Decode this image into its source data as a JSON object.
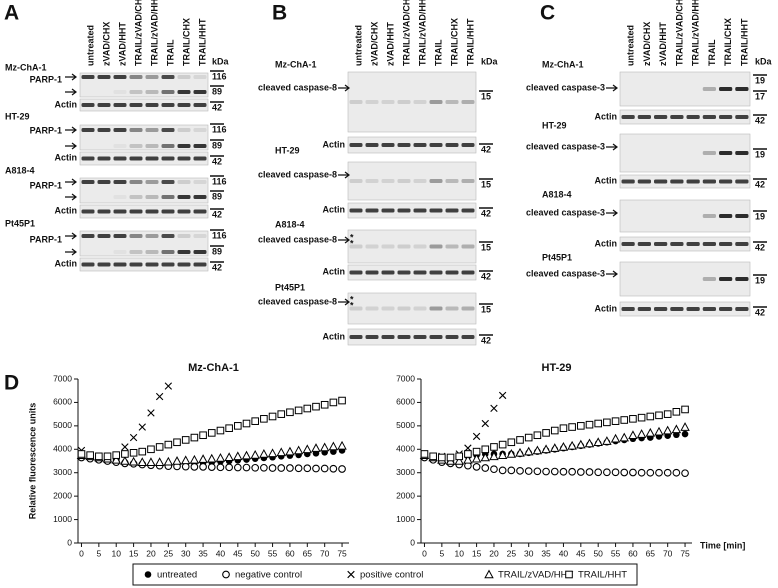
{
  "panels": [
    {
      "letter": "A",
      "kda": "kDa",
      "lanes": [
        "untreated",
        "zVAD/CHX",
        "zVAD/HHT",
        "TRAIL/zVAD/CHX",
        "TRAIL/zVAD/HHT",
        "TRAIL",
        "TRAIL/CHX",
        "TRAIL/HHT"
      ],
      "blocks": [
        {
          "cell_line": "Mz-ChA-1",
          "rows": [
            {
              "label": "PARP-1",
              "markers": [
                116,
                89
              ]
            },
            {
              "label": "Actin",
              "markers": [
                42
              ]
            }
          ]
        },
        {
          "cell_line": "HT-29",
          "rows": [
            {
              "label": "PARP-1",
              "markers": [
                116,
                89
              ]
            },
            {
              "label": "Actin",
              "markers": [
                42
              ]
            }
          ]
        },
        {
          "cell_line": "A818-4",
          "rows": [
            {
              "label": "PARP-1",
              "markers": [
                116,
                89
              ]
            },
            {
              "label": "Actin",
              "markers": [
                42
              ]
            }
          ]
        },
        {
          "cell_line": "Pt45P1",
          "rows": [
            {
              "label": "PARP-1",
              "markers": [
                116,
                89
              ]
            },
            {
              "label": "Actin",
              "markers": [
                42
              ]
            }
          ]
        }
      ]
    },
    {
      "letter": "B",
      "kda": "kDa",
      "lanes": [
        "untreated",
        "zVAD/CHX",
        "zVAD/HHT",
        "TRAIL/zVAD/CHX",
        "TRAIL/zVAD/HHT",
        "TRAIL",
        "TRAIL/CHX",
        "TRAIL/HHT"
      ],
      "blocks": [
        {
          "cell_line": "Mz-ChA-1",
          "rows": [
            {
              "label": "cleaved caspase-8",
              "markers": [
                15
              ]
            },
            {
              "label": "Actin",
              "markers": [
                42
              ]
            }
          ]
        },
        {
          "cell_line": "HT-29",
          "rows": [
            {
              "label": "cleaved caspase-8",
              "markers": [
                15
              ]
            },
            {
              "label": "Actin",
              "markers": [
                42
              ]
            }
          ]
        },
        {
          "cell_line": "A818-4",
          "rows": [
            {
              "label": "cleaved caspase-8",
              "markers": [
                15
              ],
              "asterisks": [
                "*",
                "*"
              ]
            },
            {
              "label": "Actin",
              "markers": [
                42
              ]
            }
          ]
        },
        {
          "cell_line": "Pt45P1",
          "rows": [
            {
              "label": "cleaved caspase-8",
              "markers": [
                15
              ],
              "asterisks": [
                "*",
                "*"
              ]
            },
            {
              "label": "Actin",
              "markers": [
                42
              ]
            }
          ]
        }
      ]
    },
    {
      "letter": "C",
      "kda": "kDa",
      "lanes": [
        "untreated",
        "zVAD/CHX",
        "zVAD/HHT",
        "TRAIL/zVAD/CHX",
        "TRAIL/zVAD/HHT",
        "TRAIL",
        "TRAIL/CHX",
        "TRAIL/HHT"
      ],
      "blocks": [
        {
          "cell_line": "Mz-ChA-1",
          "rows": [
            {
              "label": "cleaved caspase-3",
              "markers": [
                19,
                17
              ]
            },
            {
              "label": "Actin",
              "markers": [
                42
              ]
            }
          ]
        },
        {
          "cell_line": "HT-29",
          "rows": [
            {
              "label": "cleaved caspase-3",
              "markers": [
                19
              ]
            },
            {
              "label": "Actin",
              "markers": [
                42
              ]
            }
          ]
        },
        {
          "cell_line": "A818-4",
          "rows": [
            {
              "label": "cleaved caspase-3",
              "markers": [
                19
              ]
            },
            {
              "label": "Actin",
              "markers": [
                42
              ]
            }
          ]
        },
        {
          "cell_line": "Pt45P1",
          "rows": [
            {
              "label": "cleaved caspase-3",
              "markers": [
                19
              ]
            },
            {
              "label": "Actin",
              "markers": [
                42
              ]
            }
          ]
        }
      ]
    }
  ],
  "panel_d_letter": "D",
  "chart_data": [
    {
      "type": "scatter",
      "title": "Mz-ChA-1",
      "ylabel": "Relative fluorescence units",
      "x": [
        0,
        2.5,
        5,
        7.5,
        10,
        12.5,
        15,
        17.5,
        20,
        22.5,
        25,
        27.5,
        30,
        32.5,
        35,
        37.5,
        40,
        42.5,
        45,
        47.5,
        50,
        52.5,
        55,
        57.5,
        60,
        62.5,
        65,
        67.5,
        70,
        72.5,
        75
      ],
      "xlim": [
        -1,
        77
      ],
      "xticks": [
        0,
        5,
        10,
        15,
        20,
        25,
        30,
        35,
        40,
        45,
        50,
        55,
        60,
        65,
        70,
        75
      ],
      "ylim": [
        0,
        7000
      ],
      "yticks": [
        0,
        1000,
        2000,
        3000,
        4000,
        5000,
        6000,
        7000
      ],
      "series": [
        {
          "name": "untreated",
          "marker": "filled-circle",
          "color": "#000000",
          "values": [
            3700,
            3650,
            3600,
            3550,
            3500,
            3450,
            3400,
            3380,
            3350,
            3350,
            3350,
            3350,
            3380,
            3400,
            3420,
            3450,
            3480,
            3500,
            3530,
            3560,
            3600,
            3630,
            3660,
            3700,
            3730,
            3760,
            3800,
            3830,
            3870,
            3900,
            3950
          ]
        },
        {
          "name": "negative control",
          "marker": "circle",
          "color": "#000000",
          "values": [
            3650,
            3600,
            3550,
            3500,
            3450,
            3400,
            3380,
            3350,
            3320,
            3300,
            3280,
            3270,
            3260,
            3250,
            3250,
            3240,
            3230,
            3230,
            3220,
            3220,
            3210,
            3210,
            3200,
            3200,
            3200,
            3190,
            3190,
            3180,
            3180,
            3170,
            3160
          ]
        },
        {
          "name": "positive control",
          "marker": "x",
          "color": "#000000",
          "values": [
            3950,
            3700,
            3600,
            3550,
            3700,
            4100,
            4500,
            4950,
            5550,
            6250,
            6700,
            null,
            null,
            null,
            null,
            null,
            null,
            null,
            null,
            null,
            null,
            null,
            null,
            null,
            null,
            null,
            null,
            null,
            null,
            null,
            null
          ]
        },
        {
          "name": "TRAIL/zVAD/HHT",
          "marker": "triangle",
          "color": "#000000",
          "values": [
            3750,
            3700,
            3650,
            3600,
            3550,
            3500,
            3470,
            3450,
            3450,
            3450,
            3470,
            3500,
            3530,
            3550,
            3580,
            3600,
            3630,
            3660,
            3700,
            3730,
            3760,
            3800,
            3830,
            3870,
            3900,
            3950,
            4000,
            4050,
            4080,
            4120,
            4150
          ]
        },
        {
          "name": "TRAIL/HHT",
          "marker": "square",
          "color": "#000000",
          "values": [
            3800,
            3750,
            3700,
            3700,
            3750,
            3800,
            3850,
            3900,
            4000,
            4100,
            4200,
            4300,
            4400,
            4500,
            4600,
            4700,
            4800,
            4900,
            5000,
            5100,
            5200,
            5300,
            5400,
            5500,
            5580,
            5660,
            5740,
            5820,
            5900,
            6000,
            6080
          ]
        }
      ]
    },
    {
      "type": "scatter",
      "title": "HT-29",
      "xlabel": "Time [min]",
      "x": [
        0,
        2.5,
        5,
        7.5,
        10,
        12.5,
        15,
        17.5,
        20,
        22.5,
        25,
        27.5,
        30,
        32.5,
        35,
        37.5,
        40,
        42.5,
        45,
        47.5,
        50,
        52.5,
        55,
        57.5,
        60,
        62.5,
        65,
        67.5,
        70,
        72.5,
        75
      ],
      "xlim": [
        -1,
        77
      ],
      "xticks": [
        0,
        5,
        10,
        15,
        20,
        25,
        30,
        35,
        40,
        45,
        50,
        55,
        60,
        65,
        70,
        75
      ],
      "ylim": [
        0,
        7000
      ],
      "yticks": [
        0,
        1000,
        2000,
        3000,
        4000,
        5000,
        6000,
        7000
      ],
      "series": [
        {
          "name": "untreated",
          "marker": "filled-circle",
          "color": "#000000",
          "values": [
            3700,
            3650,
            3600,
            3600,
            3650,
            3700,
            3750,
            3800,
            3800,
            3800,
            3800,
            3800,
            3850,
            3900,
            3950,
            4000,
            4050,
            4100,
            4150,
            4200,
            4250,
            4300,
            4350,
            4400,
            4450,
            4480,
            4500,
            4550,
            4580,
            4620,
            4650
          ]
        },
        {
          "name": "negative control",
          "marker": "circle",
          "color": "#000000",
          "values": [
            3650,
            3550,
            3450,
            3400,
            3350,
            3300,
            3250,
            3200,
            3150,
            3100,
            3100,
            3080,
            3070,
            3060,
            3050,
            3050,
            3040,
            3040,
            3030,
            3030,
            3020,
            3020,
            3020,
            3010,
            3010,
            3000,
            3000,
            3000,
            3000,
            3000,
            2980
          ]
        },
        {
          "name": "positive control",
          "marker": "x",
          "color": "#000000",
          "values": [
            3800,
            3650,
            3700,
            3650,
            3800,
            4050,
            4550,
            5100,
            5750,
            6300,
            null,
            null,
            null,
            null,
            null,
            null,
            null,
            null,
            null,
            null,
            null,
            null,
            null,
            null,
            null,
            null,
            null,
            null,
            null,
            null,
            null
          ]
        },
        {
          "name": "TRAIL/zVAD/HHT",
          "marker": "triangle",
          "color": "#000000",
          "values": [
            3750,
            3650,
            3550,
            3500,
            3500,
            3550,
            3600,
            3650,
            3700,
            3750,
            3800,
            3850,
            3900,
            3950,
            4000,
            4050,
            4100,
            4150,
            4200,
            4250,
            4300,
            4350,
            4450,
            4500,
            4600,
            4650,
            4700,
            4750,
            4800,
            4850,
            4950
          ]
        },
        {
          "name": "TRAIL/HHT",
          "marker": "square",
          "color": "#000000",
          "values": [
            3800,
            3700,
            3650,
            3650,
            3700,
            3800,
            3900,
            4000,
            4100,
            4200,
            4300,
            4400,
            4500,
            4600,
            4700,
            4800,
            4900,
            4950,
            5000,
            5050,
            5100,
            5150,
            5200,
            5250,
            5300,
            5350,
            5400,
            5450,
            5500,
            5600,
            5700
          ]
        }
      ]
    }
  ]
}
